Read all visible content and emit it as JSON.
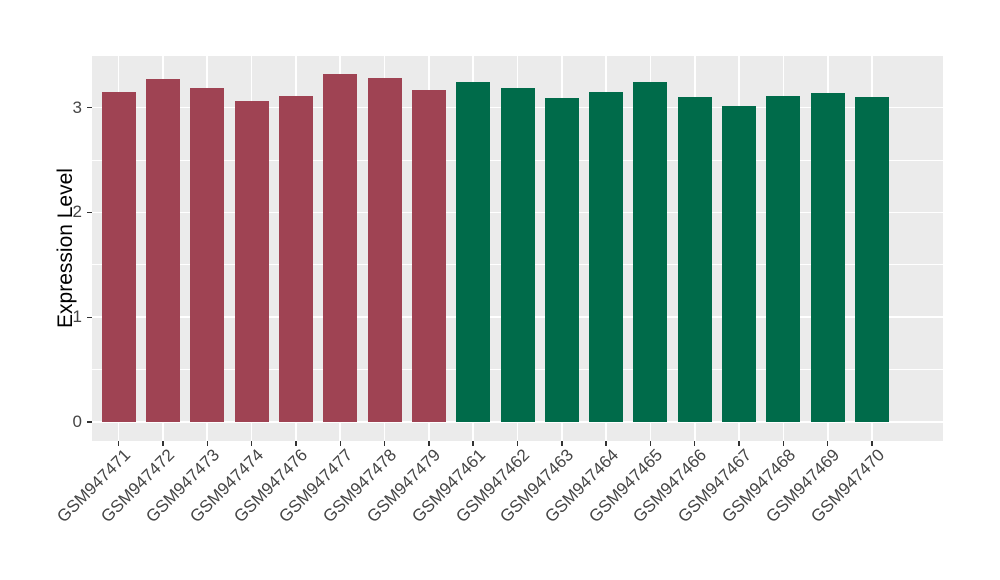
{
  "style": {
    "figure_bg": "#FFFFFF",
    "panel_bg": "#EBEBEB",
    "grid_color": "#FFFFFF",
    "tick_color": "#333333",
    "axis_text_color": "#454545",
    "axis_title_color": "#000000"
  },
  "chart_data": {
    "type": "bar",
    "title": "",
    "xlabel": "",
    "ylabel": "Expression Level",
    "ylim": [
      0,
      3.49
    ],
    "yticks": [
      0,
      1,
      2,
      3
    ],
    "yticks_minor": [
      0.5,
      1.5,
      2.5
    ],
    "grid": "white major and minor gridlines on gray panel",
    "legend_position": "none",
    "x_tick_rotation_deg": 45,
    "categories": [
      "GSM947471",
      "GSM947472",
      "GSM947473",
      "GSM947474",
      "GSM947476",
      "GSM947477",
      "GSM947478",
      "GSM947479",
      "GSM947461",
      "GSM947462",
      "GSM947463",
      "GSM947464",
      "GSM947465",
      "GSM947466",
      "GSM947467",
      "GSM947468",
      "GSM947469",
      "GSM947470"
    ],
    "values": [
      3.15,
      3.27,
      3.19,
      3.06,
      3.11,
      3.32,
      3.28,
      3.17,
      3.24,
      3.19,
      3.09,
      3.15,
      3.24,
      3.1,
      3.02,
      3.11,
      3.14,
      3.1
    ],
    "groups": [
      "red",
      "red",
      "red",
      "red",
      "red",
      "red",
      "red",
      "red",
      "green",
      "green",
      "green",
      "green",
      "green",
      "green",
      "green",
      "green",
      "green",
      "green"
    ],
    "group_colors": {
      "red": "#9F4353",
      "green": "#006B4A"
    }
  }
}
